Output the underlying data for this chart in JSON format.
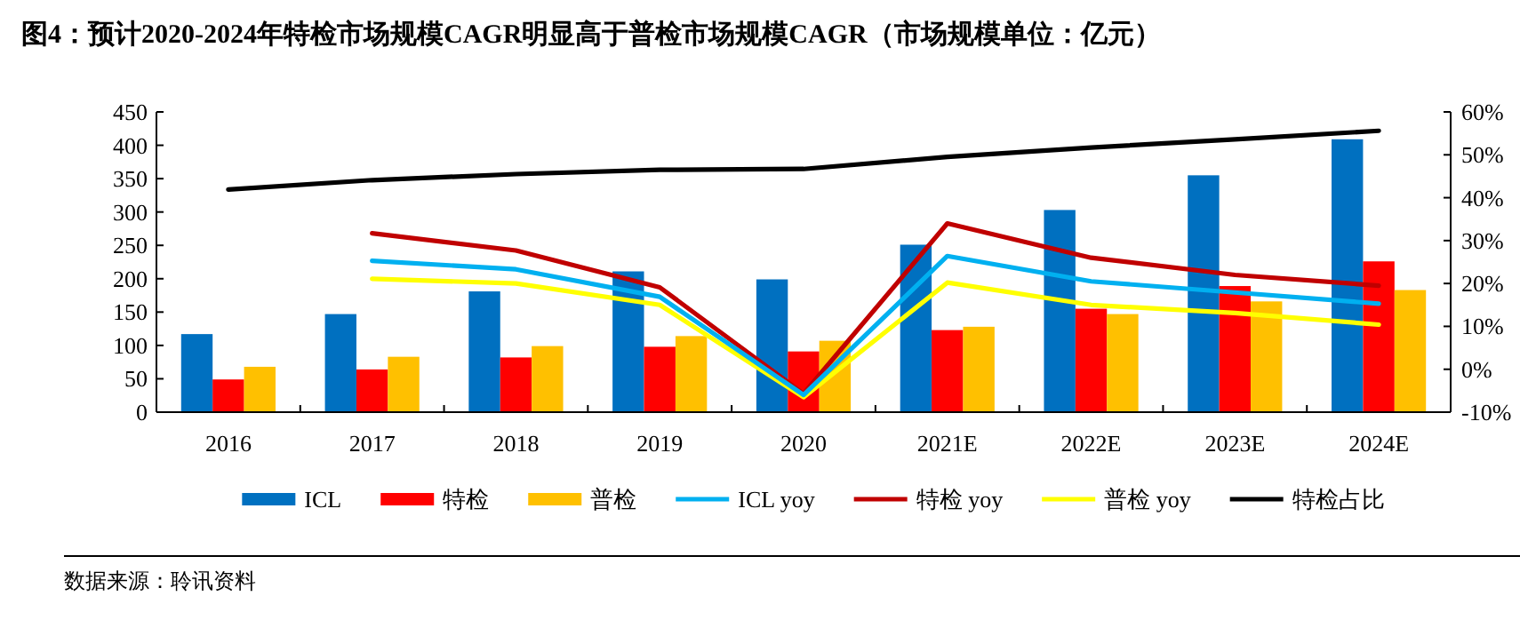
{
  "chart_data": {
    "type": "bar",
    "title": "图4：预计2020-2024年特检市场规模CAGR明显高于普检市场规模CAGR（市场规模单位：亿元）",
    "categories": [
      "2016",
      "2017",
      "2018",
      "2019",
      "2020",
      "2021E",
      "2022E",
      "2023E",
      "2024E"
    ],
    "series": [
      {
        "name": "ICL",
        "type": "bar",
        "color": "#0070c0",
        "values": [
          117,
          147,
          181,
          211,
          199,
          251,
          303,
          355,
          409
        ]
      },
      {
        "name": "特检",
        "type": "bar",
        "color": "#ff0000",
        "values": [
          49,
          64,
          82,
          98,
          91,
          123,
          155,
          189,
          226
        ]
      },
      {
        "name": "普检",
        "type": "bar",
        "color": "#ffc000",
        "values": [
          68,
          83,
          99,
          114,
          107,
          128,
          147,
          166,
          183
        ]
      },
      {
        "name": "ICL yoy",
        "type": "line",
        "axis": "y2",
        "color": "#00b0f0",
        "values": [
          null,
          25.3,
          23.3,
          16.9,
          -6.0,
          26.4,
          20.5,
          17.9,
          15.3
        ]
      },
      {
        "name": "特检 yoy",
        "type": "line",
        "axis": "y2",
        "color": "#c00000",
        "values": [
          null,
          31.7,
          27.7,
          19.1,
          -5.7,
          34.0,
          26.0,
          22.0,
          19.5
        ]
      },
      {
        "name": "普检 yoy",
        "type": "line",
        "axis": "y2",
        "color": "#ffff00",
        "values": [
          null,
          21.1,
          20.0,
          15.0,
          -6.5,
          20.2,
          15.0,
          13.1,
          10.4
        ]
      },
      {
        "name": "特检占比",
        "type": "line",
        "axis": "y2",
        "color": "#000000",
        "values": [
          41.9,
          44.1,
          45.5,
          46.5,
          46.7,
          49.5,
          51.7,
          53.6,
          55.6
        ]
      }
    ],
    "ylim": [
      0,
      450
    ],
    "yticks": [
      0,
      50,
      100,
      150,
      200,
      250,
      300,
      350,
      400,
      450
    ],
    "y2lim": [
      -10,
      60
    ],
    "y2ticks": [
      {
        "value": -10,
        "label": "-10%"
      },
      {
        "value": 0,
        "label": "0%"
      },
      {
        "value": 10,
        "label": "10%"
      },
      {
        "value": 20,
        "label": "20%"
      },
      {
        "value": 30,
        "label": "30%"
      },
      {
        "value": 40,
        "label": "40%"
      },
      {
        "value": 50,
        "label": "50%"
      },
      {
        "value": 60,
        "label": "60%"
      }
    ],
    "legend": "bottom",
    "annotations": [
      "数据来源：聆讯资料"
    ]
  }
}
